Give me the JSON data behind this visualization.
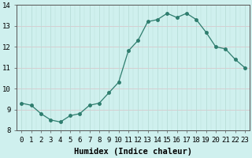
{
  "x": [
    0,
    1,
    2,
    3,
    4,
    5,
    6,
    7,
    8,
    9,
    10,
    11,
    12,
    13,
    14,
    15,
    16,
    17,
    18,
    19,
    20,
    21,
    22,
    23
  ],
  "y": [
    9.3,
    9.2,
    8.8,
    8.5,
    8.4,
    8.7,
    8.8,
    9.2,
    9.3,
    9.8,
    10.3,
    11.8,
    12.3,
    13.2,
    13.3,
    13.6,
    13.4,
    13.6,
    13.3,
    12.7,
    12.0,
    11.9,
    11.4,
    11.0
  ],
  "line_color": "#2e7d6e",
  "marker": "o",
  "marker_size": 2.5,
  "bg_color": "#cff0ee",
  "hgrid_color": "#d9c8cc",
  "vgrid_color": "#b8ddd8",
  "xlabel": "Humidex (Indice chaleur)",
  "xlim": [
    -0.5,
    23.5
  ],
  "ylim": [
    8,
    14
  ],
  "yticks": [
    8,
    9,
    10,
    11,
    12,
    13,
    14
  ],
  "xticks": [
    0,
    1,
    2,
    3,
    4,
    5,
    6,
    7,
    8,
    9,
    10,
    11,
    12,
    13,
    14,
    15,
    16,
    17,
    18,
    19,
    20,
    21,
    22,
    23
  ],
  "xlabel_fontsize": 7.5,
  "tick_fontsize": 6.5
}
